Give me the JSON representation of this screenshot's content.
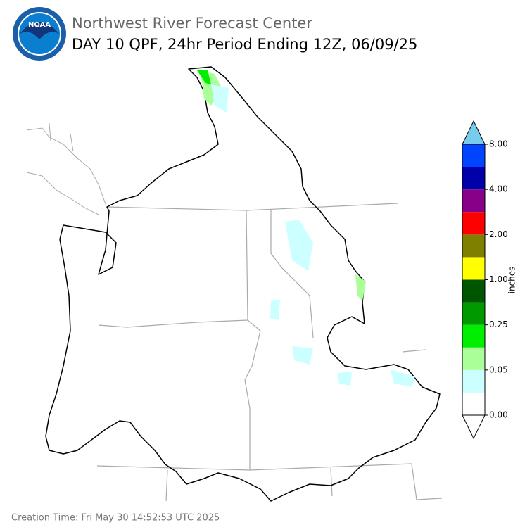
{
  "header": {
    "logo_text": "NOAA",
    "title": "Northwest River Forecast Center",
    "subtitle": "DAY 10 QPF, 24hr Period Ending 12Z, 06/09/25"
  },
  "colorbar": {
    "label": "inches",
    "colors": [
      "#ffffff",
      "#ccffff",
      "#aaff99",
      "#00ee00",
      "#009900",
      "#005500",
      "#ffff00",
      "#808000",
      "#ff0000",
      "#880088",
      "#0000aa",
      "#0044ff"
    ],
    "over_color": "#77ccee",
    "under_color": "#ffffff",
    "ticks": [
      {
        "value": 0,
        "label": "0.00"
      },
      {
        "value": 0.05,
        "label": "0.05"
      },
      {
        "value": 0.25,
        "label": "0.25"
      },
      {
        "value": 1,
        "label": "1.00"
      },
      {
        "value": 2,
        "label": "2.00"
      },
      {
        "value": 4,
        "label": "4.00"
      },
      {
        "value": 8,
        "label": "8.00"
      }
    ]
  },
  "footer": {
    "creation_time": "Creation Time: Fri May 30 14:52:53 UTC 2025"
  }
}
